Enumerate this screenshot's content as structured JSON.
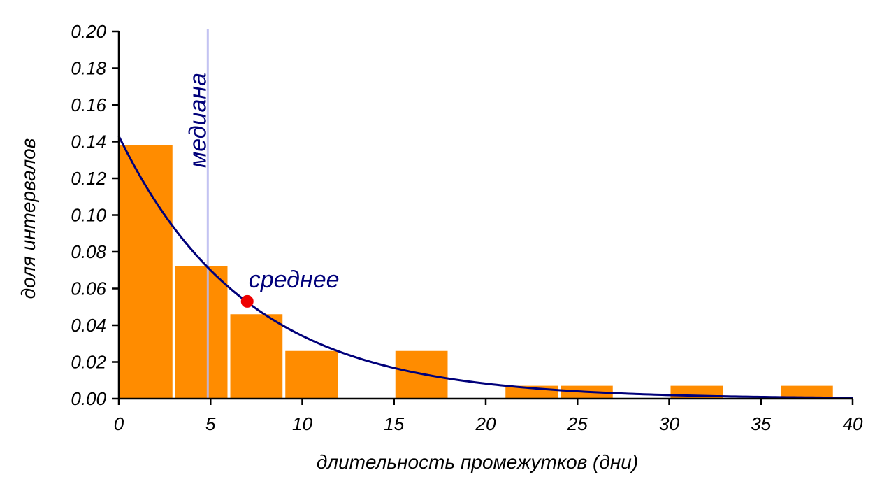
{
  "chart_data": {
    "type": "bar",
    "xlabel": "длительность промежутков (дни)",
    "ylabel": "доля интервалов",
    "xlim": [
      0,
      40
    ],
    "ylim": [
      0,
      0.2
    ],
    "x_ticks": [
      "0",
      "5",
      "10",
      "15",
      "20",
      "25",
      "30",
      "35",
      "40"
    ],
    "y_ticks": [
      "0.00",
      "0.02",
      "0.04",
      "0.06",
      "0.08",
      "0.10",
      "0.12",
      "0.14",
      "0.16",
      "0.18",
      "0.20"
    ],
    "bin_width": 3,
    "bins": [
      {
        "x0": 0,
        "x1": 3,
        "value": 0.138
      },
      {
        "x0": 3,
        "x1": 6,
        "value": 0.072
      },
      {
        "x0": 6,
        "x1": 9,
        "value": 0.046
      },
      {
        "x0": 9,
        "x1": 12,
        "value": 0.026
      },
      {
        "x0": 15,
        "x1": 18,
        "value": 0.026
      },
      {
        "x0": 21,
        "x1": 24,
        "value": 0.007
      },
      {
        "x0": 24,
        "x1": 27,
        "value": 0.007
      },
      {
        "x0": 30,
        "x1": 33,
        "value": 0.007
      },
      {
        "x0": 36,
        "x1": 39,
        "value": 0.007
      }
    ],
    "curve": {
      "type": "exponential",
      "rate": 0.143,
      "x_range": [
        0,
        40
      ]
    },
    "median": {
      "x": 4.85,
      "label": "медиана"
    },
    "mean": {
      "x": 7,
      "y": 0.053,
      "label": "среднее"
    },
    "grid": false,
    "colors": {
      "bars": "#ff8c00",
      "curve": "#00007a",
      "median_line": "#b8b8f0",
      "mean_point": "#ee0000",
      "annotation": "#00007a"
    }
  }
}
